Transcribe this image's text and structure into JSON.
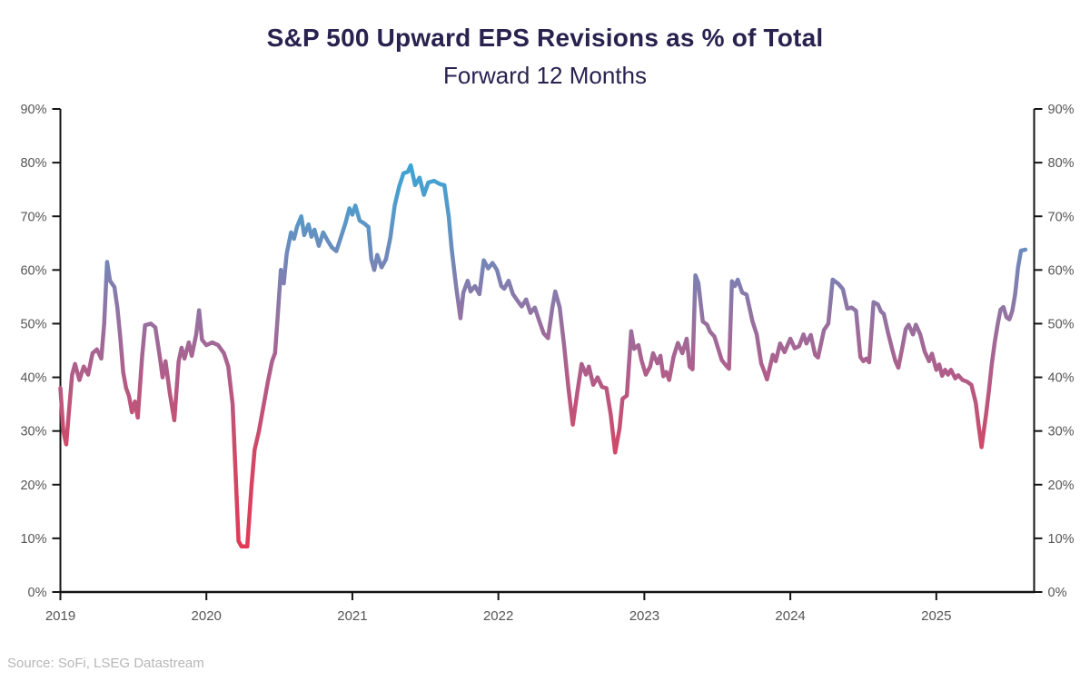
{
  "chart_data": {
    "type": "line",
    "title": "S&P 500 Upward EPS Revisions as % of Total",
    "subtitle": "Forward 12 Months",
    "source": "Source: SoFi, LSEG Datastream",
    "ylabel": "",
    "xlabel": "",
    "ylim": [
      0,
      90
    ],
    "y_ticks": [
      0,
      10,
      20,
      30,
      40,
      50,
      60,
      70,
      80,
      90
    ],
    "y_tick_suffix": "%",
    "x_ticks": [
      2019,
      2020,
      2021,
      2022,
      2023,
      2024,
      2025
    ],
    "x_min": 2019.0,
    "x_max": 2025.67,
    "grid": false,
    "legend": "none",
    "dual_y_axis": true,
    "colors": {
      "title": "#29224f",
      "axis": "#141414",
      "tick_label": "#565656",
      "source": "#b7b7b7",
      "background": "#ffffff"
    },
    "line_gradient_by_value": [
      {
        "value": 0,
        "color": "#e23a55"
      },
      {
        "value": 9,
        "color": "#e03b57"
      },
      {
        "value": 27,
        "color": "#cf4a68"
      },
      {
        "value": 40,
        "color": "#b25c88"
      },
      {
        "value": 50,
        "color": "#98709f"
      },
      {
        "value": 60,
        "color": "#7983b5"
      },
      {
        "value": 70,
        "color": "#5699c8"
      },
      {
        "value": 80,
        "color": "#3ba4d5"
      },
      {
        "value": 90,
        "color": "#32aad9"
      }
    ],
    "series": [
      {
        "name": "Upward EPS revisions as % of total (F12M)",
        "points": [
          [
            2019.0,
            38
          ],
          [
            2019.02,
            30
          ],
          [
            2019.04,
            27.5
          ],
          [
            2019.06,
            34
          ],
          [
            2019.08,
            40.5
          ],
          [
            2019.1,
            42.5
          ],
          [
            2019.13,
            39.5
          ],
          [
            2019.16,
            42
          ],
          [
            2019.19,
            40.5
          ],
          [
            2019.22,
            44.5
          ],
          [
            2019.25,
            45.2
          ],
          [
            2019.28,
            43.5
          ],
          [
            2019.3,
            50
          ],
          [
            2019.32,
            61.5
          ],
          [
            2019.34,
            58
          ],
          [
            2019.37,
            56.8
          ],
          [
            2019.39,
            53
          ],
          [
            2019.41,
            47.5
          ],
          [
            2019.43,
            41
          ],
          [
            2019.45,
            38
          ],
          [
            2019.47,
            36.5
          ],
          [
            2019.49,
            33.5
          ],
          [
            2019.51,
            35.5
          ],
          [
            2019.53,
            32.5
          ],
          [
            2019.56,
            44
          ],
          [
            2019.58,
            49.7
          ],
          [
            2019.62,
            50
          ],
          [
            2019.65,
            49.3
          ],
          [
            2019.68,
            44
          ],
          [
            2019.7,
            40
          ],
          [
            2019.72,
            43
          ],
          [
            2019.75,
            37
          ],
          [
            2019.78,
            32
          ],
          [
            2019.81,
            43
          ],
          [
            2019.83,
            45.5
          ],
          [
            2019.85,
            43.5
          ],
          [
            2019.88,
            46.5
          ],
          [
            2019.9,
            44
          ],
          [
            2019.93,
            48
          ],
          [
            2019.95,
            52.5
          ],
          [
            2019.97,
            47
          ],
          [
            2020.0,
            46
          ],
          [
            2020.04,
            46.5
          ],
          [
            2020.08,
            46
          ],
          [
            2020.12,
            44.5
          ],
          [
            2020.15,
            42
          ],
          [
            2020.18,
            35
          ],
          [
            2020.2,
            22
          ],
          [
            2020.22,
            9.5
          ],
          [
            2020.24,
            8.5
          ],
          [
            2020.28,
            8.5
          ],
          [
            2020.31,
            20
          ],
          [
            2020.33,
            26.5
          ],
          [
            2020.36,
            30
          ],
          [
            2020.39,
            34.5
          ],
          [
            2020.42,
            39
          ],
          [
            2020.45,
            43
          ],
          [
            2020.47,
            44.5
          ],
          [
            2020.49,
            52
          ],
          [
            2020.51,
            60
          ],
          [
            2020.53,
            57.5
          ],
          [
            2020.55,
            63
          ],
          [
            2020.58,
            67
          ],
          [
            2020.6,
            65.8
          ],
          [
            2020.62,
            68
          ],
          [
            2020.65,
            70
          ],
          [
            2020.67,
            66.5
          ],
          [
            2020.7,
            68.5
          ],
          [
            2020.72,
            66.2
          ],
          [
            2020.74,
            67.5
          ],
          [
            2020.77,
            64.5
          ],
          [
            2020.8,
            67
          ],
          [
            2020.83,
            65.5
          ],
          [
            2020.86,
            64.2
          ],
          [
            2020.89,
            63.5
          ],
          [
            2020.92,
            66
          ],
          [
            2020.95,
            68.5
          ],
          [
            2020.98,
            71.5
          ],
          [
            2021.0,
            70.3
          ],
          [
            2021.02,
            72
          ],
          [
            2021.05,
            69.2
          ],
          [
            2021.08,
            68.7
          ],
          [
            2021.11,
            68
          ],
          [
            2021.13,
            62
          ],
          [
            2021.15,
            60
          ],
          [
            2021.17,
            62.8
          ],
          [
            2021.2,
            60.5
          ],
          [
            2021.23,
            62
          ],
          [
            2021.26,
            66
          ],
          [
            2021.29,
            72
          ],
          [
            2021.32,
            75.5
          ],
          [
            2021.35,
            78
          ],
          [
            2021.38,
            78.3
          ],
          [
            2021.4,
            79.5
          ],
          [
            2021.43,
            75.8
          ],
          [
            2021.46,
            77.2
          ],
          [
            2021.49,
            74
          ],
          [
            2021.52,
            76.3
          ],
          [
            2021.56,
            76.6
          ],
          [
            2021.6,
            76
          ],
          [
            2021.63,
            75.8
          ],
          [
            2021.66,
            70
          ],
          [
            2021.68,
            64
          ],
          [
            2021.71,
            57
          ],
          [
            2021.74,
            51
          ],
          [
            2021.76,
            55.8
          ],
          [
            2021.79,
            58
          ],
          [
            2021.81,
            56
          ],
          [
            2021.84,
            57
          ],
          [
            2021.87,
            55.5
          ],
          [
            2021.9,
            61.8
          ],
          [
            2021.93,
            60.3
          ],
          [
            2021.96,
            61.3
          ],
          [
            2021.99,
            60
          ],
          [
            2022.02,
            57
          ],
          [
            2022.04,
            56.5
          ],
          [
            2022.07,
            58
          ],
          [
            2022.1,
            55.5
          ],
          [
            2022.13,
            54.3
          ],
          [
            2022.16,
            53.2
          ],
          [
            2022.19,
            54.5
          ],
          [
            2022.22,
            52
          ],
          [
            2022.25,
            53
          ],
          [
            2022.28,
            50.5
          ],
          [
            2022.31,
            48.2
          ],
          [
            2022.34,
            47.3
          ],
          [
            2022.37,
            53
          ],
          [
            2022.39,
            56
          ],
          [
            2022.42,
            53
          ],
          [
            2022.45,
            46
          ],
          [
            2022.48,
            38
          ],
          [
            2022.51,
            31.2
          ],
          [
            2022.54,
            37
          ],
          [
            2022.57,
            42.5
          ],
          [
            2022.6,
            40.5
          ],
          [
            2022.62,
            42
          ],
          [
            2022.65,
            38.6
          ],
          [
            2022.68,
            40
          ],
          [
            2022.71,
            38.2
          ],
          [
            2022.74,
            38
          ],
          [
            2022.77,
            33
          ],
          [
            2022.8,
            26
          ],
          [
            2022.83,
            30.5
          ],
          [
            2022.85,
            36
          ],
          [
            2022.88,
            36.6
          ],
          [
            2022.91,
            48.6
          ],
          [
            2022.93,
            45.3
          ],
          [
            2022.96,
            46
          ],
          [
            2022.98,
            43.2
          ],
          [
            2023.01,
            40.5
          ],
          [
            2023.04,
            42
          ],
          [
            2023.06,
            44.5
          ],
          [
            2023.09,
            42.6
          ],
          [
            2023.11,
            44
          ],
          [
            2023.13,
            40.2
          ],
          [
            2023.15,
            41
          ],
          [
            2023.17,
            39.5
          ],
          [
            2023.2,
            43.8
          ],
          [
            2023.23,
            46.4
          ],
          [
            2023.26,
            44.5
          ],
          [
            2023.29,
            47.2
          ],
          [
            2023.31,
            42
          ],
          [
            2023.33,
            41.5
          ],
          [
            2023.35,
            59
          ],
          [
            2023.37,
            57.6
          ],
          [
            2023.4,
            50.4
          ],
          [
            2023.43,
            49.8
          ],
          [
            2023.45,
            48.5
          ],
          [
            2023.48,
            47.6
          ],
          [
            2023.51,
            45
          ],
          [
            2023.53,
            43.2
          ],
          [
            2023.56,
            42.2
          ],
          [
            2023.58,
            41.6
          ],
          [
            2023.6,
            57.9
          ],
          [
            2023.62,
            57
          ],
          [
            2023.64,
            58.2
          ],
          [
            2023.67,
            55.8
          ],
          [
            2023.7,
            55.4
          ],
          [
            2023.72,
            53
          ],
          [
            2023.74,
            50.5
          ],
          [
            2023.77,
            48
          ],
          [
            2023.8,
            42.6
          ],
          [
            2023.82,
            41.2
          ],
          [
            2023.84,
            39.6
          ],
          [
            2023.88,
            44.2
          ],
          [
            2023.9,
            43
          ],
          [
            2023.93,
            46.3
          ],
          [
            2023.96,
            44.7
          ],
          [
            2024.0,
            47.2
          ],
          [
            2024.03,
            45.4
          ],
          [
            2024.06,
            45.8
          ],
          [
            2024.09,
            48
          ],
          [
            2024.11,
            46.3
          ],
          [
            2024.14,
            47.9
          ],
          [
            2024.17,
            44.2
          ],
          [
            2024.19,
            43.7
          ],
          [
            2024.23,
            48.8
          ],
          [
            2024.26,
            50
          ],
          [
            2024.29,
            58.2
          ],
          [
            2024.33,
            57.4
          ],
          [
            2024.36,
            56.4
          ],
          [
            2024.39,
            52.8
          ],
          [
            2024.42,
            53
          ],
          [
            2024.45,
            52.4
          ],
          [
            2024.48,
            43.8
          ],
          [
            2024.5,
            43
          ],
          [
            2024.52,
            43.5
          ],
          [
            2024.54,
            42.8
          ],
          [
            2024.57,
            54
          ],
          [
            2024.6,
            53.6
          ],
          [
            2024.62,
            52.3
          ],
          [
            2024.64,
            51.8
          ],
          [
            2024.67,
            48.2
          ],
          [
            2024.7,
            45
          ],
          [
            2024.72,
            43
          ],
          [
            2024.74,
            41.8
          ],
          [
            2024.77,
            46
          ],
          [
            2024.79,
            49
          ],
          [
            2024.81,
            49.8
          ],
          [
            2024.84,
            48
          ],
          [
            2024.86,
            49.8
          ],
          [
            2024.89,
            48
          ],
          [
            2024.92,
            44.8
          ],
          [
            2024.95,
            43
          ],
          [
            2024.97,
            44.4
          ],
          [
            2025.0,
            41.4
          ],
          [
            2025.02,
            42.4
          ],
          [
            2025.04,
            40.3
          ],
          [
            2025.06,
            41.4
          ],
          [
            2025.08,
            40.5
          ],
          [
            2025.1,
            41.4
          ],
          [
            2025.13,
            39.8
          ],
          [
            2025.15,
            40.4
          ],
          [
            2025.18,
            39.5
          ],
          [
            2025.21,
            39.2
          ],
          [
            2025.24,
            38.6
          ],
          [
            2025.27,
            35.3
          ],
          [
            2025.29,
            31
          ],
          [
            2025.31,
            27
          ],
          [
            2025.34,
            33
          ],
          [
            2025.36,
            37.5
          ],
          [
            2025.38,
            42.5
          ],
          [
            2025.4,
            46.5
          ],
          [
            2025.42,
            49.8
          ],
          [
            2025.44,
            52.6
          ],
          [
            2025.46,
            53.1
          ],
          [
            2025.48,
            51.2
          ],
          [
            2025.5,
            50.8
          ],
          [
            2025.52,
            52.3
          ],
          [
            2025.54,
            55.5
          ],
          [
            2025.56,
            60.5
          ],
          [
            2025.58,
            63.6
          ],
          [
            2025.61,
            63.8
          ]
        ]
      }
    ]
  }
}
